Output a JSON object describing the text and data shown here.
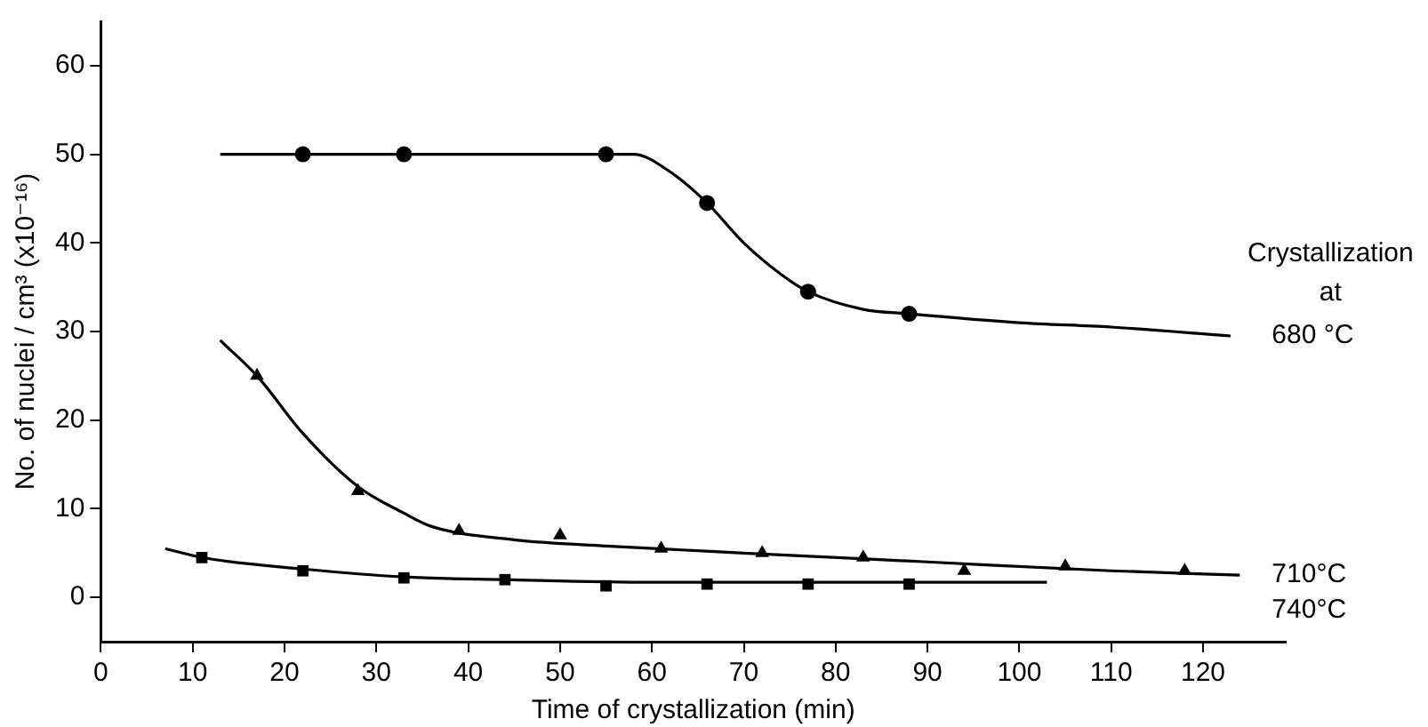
{
  "chart_data": {
    "type": "scatter",
    "xlabel": "Time of crystallization (min)",
    "ylabel": "No. of nuclei / cm³ (x10⁻¹⁶)",
    "legend_title": "Crystallization\nat",
    "xlim": [
      0,
      129
    ],
    "xticks": [
      0,
      10,
      20,
      30,
      40,
      50,
      60,
      70,
      80,
      90,
      100,
      110,
      120
    ],
    "ylim": [
      -5,
      65
    ],
    "yticks": [
      0,
      10,
      20,
      30,
      40,
      50,
      60
    ],
    "grid": false,
    "legend": false,
    "series": [
      {
        "marker": "circle",
        "color": "#000000",
        "x": [
          22,
          33,
          55,
          66,
          77,
          88
        ],
        "values": [
          50,
          50,
          50,
          44.5,
          34.5,
          32
        ]
      },
      {
        "type": "line",
        "name": "680 °C",
        "marker": "none",
        "line_style": "solid",
        "color": "#000000",
        "x": [
          13,
          22,
          55,
          58,
          62,
          66,
          70,
          74,
          77,
          83,
          88,
          100,
          110,
          123
        ],
        "values": [
          50,
          50,
          50,
          50,
          48,
          44.5,
          40,
          36.5,
          34.5,
          32.5,
          32,
          31,
          30.5,
          29.5
        ]
      },
      {
        "marker": "triangle",
        "color": "#000000",
        "x": [
          17,
          28,
          39,
          50,
          61,
          72,
          83,
          94,
          105,
          118
        ],
        "values": [
          25,
          12,
          7.5,
          7,
          5.5,
          5,
          4.5,
          3,
          3.5,
          3
        ]
      },
      {
        "type": "line",
        "name": "710°C",
        "marker": "none",
        "line_style": "solid",
        "color": "#000000",
        "x": [
          13,
          17,
          22,
          28,
          33,
          36,
          45,
          55,
          70,
          90,
          110,
          124
        ],
        "values": [
          29,
          25,
          18.5,
          12.5,
          9.5,
          8,
          6.5,
          5.8,
          5,
          4,
          3,
          2.5
        ]
      },
      {
        "marker": "square",
        "color": "#000000",
        "x": [
          11,
          22,
          33,
          44,
          55,
          66,
          77,
          88
        ],
        "values": [
          4.5,
          3,
          2.2,
          2,
          1.3,
          1.5,
          1.5,
          1.5
        ]
      },
      {
        "type": "line",
        "name": "740°C",
        "marker": "none",
        "line_style": "solid",
        "color": "#000000",
        "x": [
          7,
          11,
          22,
          33,
          44,
          60,
          80,
          103
        ],
        "values": [
          5.5,
          4.5,
          3.2,
          2.3,
          2,
          1.7,
          1.7,
          1.7
        ]
      }
    ]
  }
}
